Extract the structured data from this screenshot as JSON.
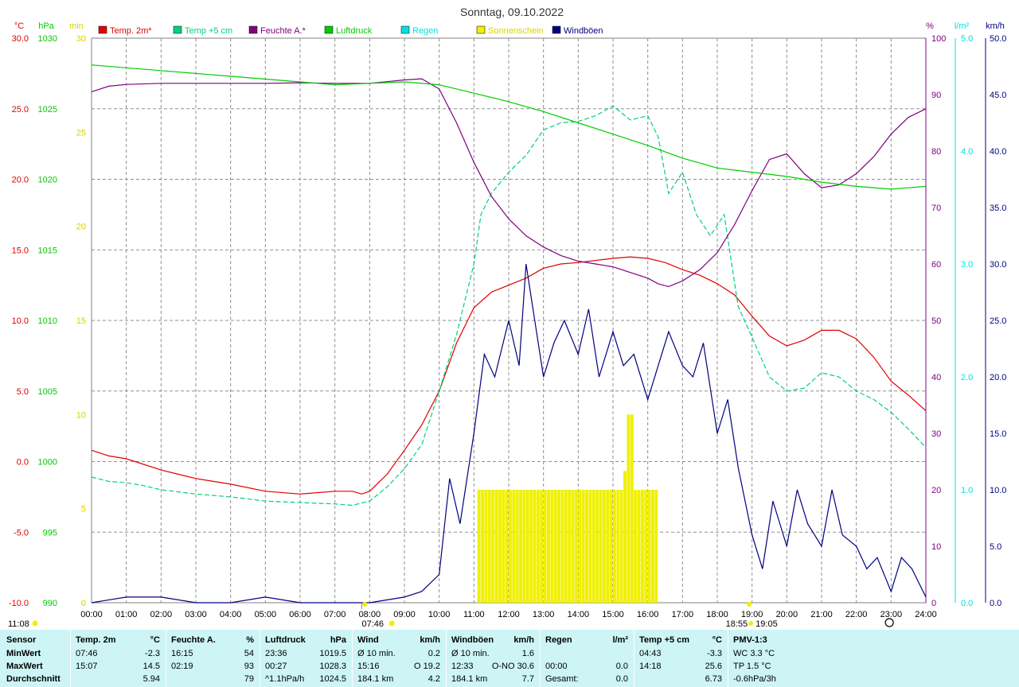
{
  "title": "Sonntag, 09.10.2022",
  "colors": {
    "temp": "#e00000",
    "temp5": "#00d080",
    "hum": "#800080",
    "press": "#00cc00",
    "rain": "#00e0e0",
    "sun": "#f0f000",
    "wind": "#000080",
    "grid": "#808080"
  },
  "legend": [
    {
      "label": "Temp. 2m*",
      "color": "#e00000"
    },
    {
      "label": "Temp +5 cm",
      "color": "#00d080"
    },
    {
      "label": "Feuchte A.*",
      "color": "#800080"
    },
    {
      "label": "Luftdruck",
      "color": "#00cc00"
    },
    {
      "label": "Regen",
      "color": "#00e0e0"
    },
    {
      "label": "Sonnenschein",
      "color": "#f0f000"
    },
    {
      "label": "Windböen",
      "color": "#000080"
    }
  ],
  "axis_units": {
    "temp": "°C",
    "press": "hPa",
    "sun": "min",
    "hum": "%",
    "rain": "l/m²",
    "wind": "km/h"
  },
  "markers": {
    "left_bottom": "11:08",
    "sunrise": "07:46",
    "sunset_a": "18:55",
    "sunset_b": "19:05"
  },
  "chart_data": {
    "type": "line",
    "x_ticks": [
      "00:00",
      "01:00",
      "02:00",
      "03:00",
      "04:00",
      "05:00",
      "06:00",
      "07:00",
      "08:00",
      "09:00",
      "10:00",
      "11:00",
      "12:00",
      "13:00",
      "14:00",
      "15:00",
      "16:00",
      "17:00",
      "18:00",
      "19:00",
      "20:00",
      "21:00",
      "22:00",
      "23:00",
      "24:00"
    ],
    "axes": {
      "temp": {
        "range": [
          -10,
          30
        ],
        "ticks": [
          "30.0",
          "25.0",
          "20.0",
          "15.0",
          "10.0",
          "5.0",
          "0.0",
          "-5.0",
          "-10.0"
        ]
      },
      "press": {
        "range": [
          990,
          1030
        ],
        "ticks": [
          "1030",
          "1025",
          "1020",
          "1015",
          "1010",
          "1005",
          "1000",
          "995",
          "990"
        ]
      },
      "sun": {
        "range": [
          0,
          30
        ],
        "ticks": [
          "30",
          "25",
          "20",
          "15",
          "10",
          "5",
          "0"
        ]
      },
      "hum": {
        "range": [
          0,
          100
        ],
        "ticks": [
          "100",
          "90",
          "80",
          "70",
          "60",
          "50",
          "40",
          "30",
          "20",
          "10",
          "0"
        ]
      },
      "rain": {
        "range": [
          0,
          5
        ],
        "ticks": [
          "5.0",
          "4.0",
          "3.0",
          "2.0",
          "1.0",
          "0.0"
        ]
      },
      "wind": {
        "range": [
          0,
          50
        ],
        "ticks": [
          "50.0",
          "45.0",
          "40.0",
          "35.0",
          "30.0",
          "25.0",
          "20.0",
          "15.0",
          "10.0",
          "5.0",
          "0.0"
        ]
      }
    },
    "series": [
      {
        "name": "Temp. 2m*",
        "axis": "temp",
        "x": [
          0,
          0.5,
          1,
          1.5,
          2,
          2.5,
          3,
          4,
          5,
          6,
          7,
          7.5,
          7.77,
          8,
          8.5,
          9,
          9.5,
          10,
          10.5,
          11,
          11.5,
          12,
          12.5,
          13,
          13.5,
          14,
          15,
          15.5,
          16,
          16.5,
          17,
          17.5,
          18,
          18.5,
          19,
          19.5,
          20,
          20.5,
          21,
          21.5,
          22,
          22.5,
          23,
          23.5,
          24
        ],
        "y": [
          0.8,
          0.4,
          0.2,
          -0.2,
          -0.6,
          -0.9,
          -1.2,
          -1.6,
          -2.1,
          -2.3,
          -2.1,
          -2.1,
          -2.3,
          -2.1,
          -0.9,
          0.8,
          2.6,
          5.0,
          8.4,
          10.9,
          12.0,
          12.5,
          13.0,
          13.7,
          14.0,
          14.1,
          14.4,
          14.5,
          14.4,
          14.1,
          13.6,
          13.2,
          12.6,
          11.8,
          10.3,
          8.9,
          8.2,
          8.6,
          9.3,
          9.3,
          8.7,
          7.4,
          5.7,
          4.7,
          3.6
        ]
      },
      {
        "name": "Temp +5 cm",
        "axis": "temp",
        "x": [
          0,
          0.5,
          1,
          1.5,
          2,
          3,
          4,
          5,
          6,
          7,
          7.5,
          8,
          8.5,
          9,
          9.5,
          10,
          10.5,
          11,
          11.2,
          11.5,
          12,
          12.5,
          13,
          13.5,
          14,
          14.5,
          15,
          15.5,
          16,
          16.3,
          16.6,
          17,
          17.4,
          17.8,
          18.2,
          18.6,
          19,
          19.5,
          20,
          20.5,
          21,
          21.5,
          22,
          22.5,
          23,
          23.5,
          24
        ],
        "y": [
          -1.1,
          -1.4,
          -1.5,
          -1.7,
          -2.0,
          -2.3,
          -2.5,
          -2.8,
          -2.9,
          -3.0,
          -3.1,
          -2.8,
          -1.8,
          -0.5,
          1.2,
          5.0,
          9.0,
          14.0,
          17.5,
          19.0,
          20.5,
          21.7,
          23.5,
          24.0,
          24.1,
          24.5,
          25.2,
          24.2,
          24.5,
          23.0,
          19.0,
          20.5,
          17.5,
          16.0,
          17.5,
          11.0,
          8.8,
          6.0,
          5.0,
          5.2,
          6.3,
          6.0,
          5.0,
          4.4,
          3.5,
          2.3,
          1.0
        ]
      },
      {
        "name": "Feuchte A.*",
        "axis": "hum",
        "x": [
          0,
          0.5,
          1,
          2,
          3,
          4,
          5,
          6,
          7,
          8,
          8.5,
          9,
          9.5,
          10,
          10.5,
          11,
          11.5,
          12,
          12.5,
          13,
          13.5,
          14,
          14.5,
          15,
          15.5,
          16,
          16.3,
          16.6,
          17,
          17.5,
          18,
          18.5,
          19,
          19.5,
          20,
          20.5,
          21,
          21.5,
          22,
          22.5,
          23,
          23.5,
          24
        ],
        "y": [
          90.5,
          91.5,
          91.8,
          92.0,
          92.0,
          92.0,
          92.0,
          92.1,
          92.0,
          92.0,
          92.3,
          92.6,
          92.8,
          91.0,
          85.0,
          78.0,
          72.0,
          68.0,
          65.0,
          63.0,
          61.5,
          60.5,
          60.0,
          59.5,
          58.5,
          57.5,
          56.5,
          56.0,
          57.0,
          59.0,
          62.0,
          67.0,
          73.0,
          78.5,
          79.5,
          76.0,
          73.5,
          74.0,
          76.0,
          79.0,
          83.0,
          86.0,
          87.5
        ]
      },
      {
        "name": "Luftdruck",
        "axis": "press",
        "x": [
          0,
          1,
          2,
          3,
          4,
          5,
          6,
          7,
          8,
          9,
          10,
          11,
          12,
          13,
          14,
          15,
          16,
          17,
          18,
          19,
          20,
          21,
          22,
          23,
          24
        ],
        "y": [
          1028.1,
          1027.9,
          1027.7,
          1027.5,
          1027.3,
          1027.1,
          1026.9,
          1026.7,
          1026.8,
          1026.9,
          1026.7,
          1026.1,
          1025.5,
          1024.8,
          1024.0,
          1023.2,
          1022.4,
          1021.5,
          1020.8,
          1020.5,
          1020.2,
          1019.8,
          1019.5,
          1019.3,
          1019.5
        ]
      },
      {
        "name": "Sonnenschein",
        "axis": "sun",
        "x": [
          11.1,
          12,
          13,
          14,
          15,
          15.2,
          15.35,
          15.5,
          16.2
        ],
        "y": [
          6,
          6,
          6,
          6,
          6,
          7,
          10,
          6,
          6
        ]
      },
      {
        "name": "Windböen",
        "axis": "wind",
        "x": [
          0,
          1,
          2,
          3,
          4,
          5,
          6,
          7,
          8,
          9,
          9.5,
          10,
          10.3,
          10.6,
          11,
          11.3,
          11.6,
          12,
          12.3,
          12.5,
          12.8,
          13,
          13.3,
          13.6,
          14,
          14.3,
          14.6,
          15,
          15.3,
          15.6,
          16,
          16.3,
          16.6,
          17,
          17.3,
          17.6,
          18,
          18.3,
          18.6,
          19,
          19.3,
          19.6,
          20,
          20.3,
          20.6,
          21,
          21.3,
          21.6,
          22,
          22.3,
          22.6,
          23,
          23.3,
          23.6,
          24
        ],
        "y": [
          0,
          0.5,
          0.5,
          0,
          0,
          0.5,
          0,
          0,
          0,
          0.5,
          1,
          2.5,
          11,
          7,
          15,
          22,
          20,
          25,
          21,
          30,
          24,
          20,
          23,
          25,
          22,
          26,
          20,
          24,
          21,
          22,
          18,
          21,
          24,
          21,
          20,
          23,
          15,
          18,
          12,
          6,
          3,
          9,
          5,
          10,
          7,
          5,
          10,
          6,
          5,
          3,
          4,
          1,
          4,
          3,
          0.5
        ]
      }
    ]
  },
  "table": {
    "sensor": {
      "header": "Sensor",
      "rows": [
        "MinWert",
        "MaxWert",
        "Durchschnitt"
      ]
    },
    "temp2m": {
      "header": "Temp. 2m",
      "unit": "°C",
      "r1": [
        "07:46",
        "-2.3"
      ],
      "r2": [
        "15:07",
        "14.5"
      ],
      "r3": [
        "",
        "5.94"
      ]
    },
    "feuchte": {
      "header": "Feuchte A.",
      "unit": "%",
      "r1": [
        "16:15",
        "54"
      ],
      "r2": [
        "02:19",
        "93"
      ],
      "r3": [
        "",
        "79"
      ]
    },
    "luftdruck": {
      "header": "Luftdruck",
      "unit": "hPa",
      "r1": [
        "23:36",
        "1019.5"
      ],
      "r2": [
        "00:27",
        "1028.3"
      ],
      "r3": [
        "^1.1hPa/h",
        "1024.5"
      ]
    },
    "wind": {
      "header": "Wind",
      "unit": "km/h",
      "r1": [
        "Ø 10 min.",
        "0.2"
      ],
      "r2": [
        "15:16",
        "O 19.2"
      ],
      "r3": [
        "184.1 km",
        "4.2"
      ]
    },
    "windboeen": {
      "header": "Windböen",
      "unit": "km/h",
      "r1": [
        "Ø 10 min.",
        "1.6"
      ],
      "r2": [
        "12:33",
        "O-NO 30.6"
      ],
      "r3": [
        "184.1 km",
        "7.7"
      ]
    },
    "regen": {
      "header": "Regen",
      "unit": "l/m²",
      "r1": [
        "",
        ""
      ],
      "r2": [
        "00:00",
        "0.0"
      ],
      "r3": [
        "Gesamt:",
        "0.0"
      ]
    },
    "temp5": {
      "header": "Temp +5 cm",
      "unit": "°C",
      "r1": [
        "04:43",
        "-3.3"
      ],
      "r2": [
        "14:18",
        "25.6"
      ],
      "r3": [
        "",
        "6.73"
      ]
    },
    "pmv": {
      "header": "PMV-1:3",
      "r1": "WC 3.3 °C",
      "r2": "TP 1.5 °C",
      "r3": "-0.6hPa/3h"
    }
  }
}
